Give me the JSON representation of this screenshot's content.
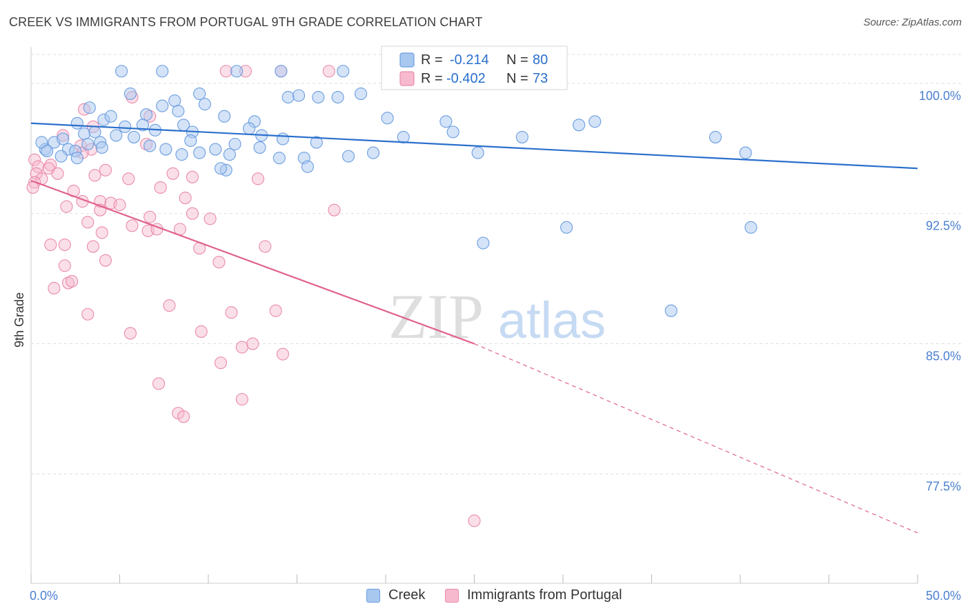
{
  "header": {
    "title": "CREEK VS IMMIGRANTS FROM PORTUGAL 9TH GRADE CORRELATION CHART",
    "source": "Source: ZipAtlas.com"
  },
  "watermark": {
    "zip": "ZIP",
    "atlas": "atlas"
  },
  "colors": {
    "creek_fill": "#a9c8f0",
    "creek_stroke": "#6a9de0",
    "creek_line": "#2a6fcc",
    "portugal_fill": "#f7b9cd",
    "portugal_stroke": "#e98aab",
    "portugal_line": "#e0618f",
    "axis_label": "#4a7fd0",
    "grid": "#dddddd"
  },
  "legend": {
    "rows": [
      {
        "r_label": "R =",
        "r_value": "-0.214",
        "n_label": "N =",
        "n_value": "80"
      },
      {
        "r_label": "R =",
        "r_value": "-0.402",
        "n_label": "N =",
        "n_value": "73"
      }
    ]
  },
  "bottom_legend": {
    "items": [
      "Creek",
      "Immigrants from Portugal"
    ]
  },
  "chart_data": {
    "type": "scatter",
    "title": "CREEK VS IMMIGRANTS FROM PORTUGAL 9TH GRADE CORRELATION CHART",
    "xlabel": "",
    "ylabel": "9th Grade",
    "xlim": [
      0,
      50
    ],
    "ylim": [
      71.2,
      102.1
    ],
    "x_tick_labels": [
      "0.0%",
      "50.0%"
    ],
    "y_ticks": [
      100,
      92.5,
      85,
      77.5
    ],
    "y_tick_labels": [
      "100.0%",
      "92.5%",
      "85.0%",
      "77.5%"
    ],
    "grid": "horizontal dashed",
    "legend_position": "top-center",
    "series": [
      {
        "name": "Creek",
        "r": -0.214,
        "n": 80,
        "trend": {
          "x0": 0,
          "y0": 97.7,
          "x1": 50,
          "y1": 95.1
        },
        "points": [
          [
            5.1,
            100.7
          ],
          [
            7.4,
            100.7
          ],
          [
            11.6,
            100.7
          ],
          [
            14.1,
            100.7
          ],
          [
            17.6,
            100.7
          ],
          [
            22.2,
            100.7
          ],
          [
            24.2,
            100.7
          ],
          [
            5.6,
            99.4
          ],
          [
            8.1,
            99.0
          ],
          [
            9.5,
            99.4
          ],
          [
            14.5,
            99.2
          ],
          [
            15.1,
            99.3
          ],
          [
            16.2,
            99.2
          ],
          [
            17.3,
            99.2
          ],
          [
            18.6,
            99.4
          ],
          [
            3.3,
            98.6
          ],
          [
            6.5,
            98.2
          ],
          [
            7.4,
            98.7
          ],
          [
            8.3,
            98.4
          ],
          [
            9.8,
            98.8
          ],
          [
            10.9,
            98.1
          ],
          [
            12.6,
            97.8
          ],
          [
            2.6,
            97.7
          ],
          [
            4.1,
            97.9
          ],
          [
            4.5,
            98.1
          ],
          [
            5.3,
            97.5
          ],
          [
            6.3,
            97.6
          ],
          [
            7.0,
            97.3
          ],
          [
            8.6,
            97.6
          ],
          [
            9.1,
            97.2
          ],
          [
            12.3,
            97.4
          ],
          [
            13.0,
            97.0
          ],
          [
            20.1,
            98.0
          ],
          [
            23.4,
            97.8
          ],
          [
            23.8,
            97.2
          ],
          [
            30.9,
            97.6
          ],
          [
            31.8,
            97.8
          ],
          [
            0.8,
            96.2
          ],
          [
            1.3,
            96.6
          ],
          [
            2.1,
            96.2
          ],
          [
            3.0,
            97.1
          ],
          [
            3.6,
            97.2
          ],
          [
            4.8,
            97.0
          ],
          [
            5.8,
            96.9
          ],
          [
            6.7,
            96.4
          ],
          [
            9.0,
            96.7
          ],
          [
            10.4,
            96.2
          ],
          [
            11.5,
            96.5
          ],
          [
            12.9,
            96.3
          ],
          [
            14.2,
            96.8
          ],
          [
            16.1,
            96.6
          ],
          [
            21.0,
            96.9
          ],
          [
            27.7,
            96.9
          ],
          [
            38.6,
            96.9
          ],
          [
            1.8,
            96.8
          ],
          [
            0.6,
            96.6
          ],
          [
            3.2,
            96.5
          ],
          [
            3.9,
            96.6
          ],
          [
            4.0,
            96.3
          ],
          [
            2.5,
            96.1
          ],
          [
            0.9,
            96.1
          ],
          [
            1.7,
            95.8
          ],
          [
            2.6,
            95.7
          ],
          [
            7.6,
            96.2
          ],
          [
            8.5,
            95.9
          ],
          [
            9.5,
            96.0
          ],
          [
            11.2,
            95.9
          ],
          [
            14.0,
            95.7
          ],
          [
            15.4,
            95.7
          ],
          [
            17.9,
            95.8
          ],
          [
            19.3,
            96.0
          ],
          [
            25.2,
            96.0
          ],
          [
            40.3,
            96.0
          ],
          [
            11.0,
            95.0
          ],
          [
            15.6,
            95.2
          ],
          [
            10.7,
            95.1
          ],
          [
            30.2,
            91.7
          ],
          [
            40.6,
            91.7
          ],
          [
            25.5,
            90.8
          ],
          [
            36.1,
            86.9
          ]
        ]
      },
      {
        "name": "Immigrants from Portugal",
        "r": -0.402,
        "n": 73,
        "trend_solid": {
          "x0": 0,
          "y0": 94.4,
          "x1": 25.0,
          "y1": 85.0
        },
        "trend_dashed": {
          "x0": 25.0,
          "y0": 85.0,
          "x1": 50,
          "y1": 74.1
        },
        "points": [
          [
            11.0,
            100.7
          ],
          [
            12.1,
            100.7
          ],
          [
            14.1,
            100.7
          ],
          [
            16.8,
            100.7
          ],
          [
            5.7,
            99.2
          ],
          [
            3.0,
            98.5
          ],
          [
            6.7,
            98.1
          ],
          [
            3.5,
            97.5
          ],
          [
            1.8,
            97.0
          ],
          [
            2.8,
            96.4
          ],
          [
            6.5,
            96.5
          ],
          [
            3.4,
            96.2
          ],
          [
            2.9,
            96.0
          ],
          [
            0.2,
            95.6
          ],
          [
            1.1,
            95.3
          ],
          [
            0.4,
            95.2
          ],
          [
            1.0,
            95.1
          ],
          [
            0.3,
            94.8
          ],
          [
            0.6,
            94.5
          ],
          [
            0.2,
            94.3
          ],
          [
            1.5,
            94.8
          ],
          [
            3.6,
            94.7
          ],
          [
            4.2,
            95.0
          ],
          [
            5.5,
            94.5
          ],
          [
            8.0,
            94.8
          ],
          [
            9.1,
            94.6
          ],
          [
            12.8,
            94.5
          ],
          [
            7.3,
            94.0
          ],
          [
            2.4,
            93.8
          ],
          [
            2.9,
            93.2
          ],
          [
            3.9,
            93.2
          ],
          [
            4.5,
            93.1
          ],
          [
            5.0,
            93.0
          ],
          [
            8.7,
            93.4
          ],
          [
            2.0,
            92.9
          ],
          [
            3.9,
            92.7
          ],
          [
            6.7,
            92.3
          ],
          [
            9.1,
            92.5
          ],
          [
            17.1,
            92.7
          ],
          [
            3.2,
            92.0
          ],
          [
            4.0,
            91.4
          ],
          [
            5.7,
            91.8
          ],
          [
            6.6,
            91.5
          ],
          [
            7.1,
            91.6
          ],
          [
            8.4,
            91.6
          ],
          [
            10.1,
            92.2
          ],
          [
            1.1,
            90.7
          ],
          [
            1.9,
            90.7
          ],
          [
            3.5,
            90.6
          ],
          [
            4.2,
            89.8
          ],
          [
            9.5,
            90.5
          ],
          [
            13.2,
            90.6
          ],
          [
            1.9,
            89.5
          ],
          [
            10.6,
            89.7
          ],
          [
            2.1,
            88.5
          ],
          [
            2.3,
            88.6
          ],
          [
            1.3,
            88.2
          ],
          [
            7.8,
            87.2
          ],
          [
            11.3,
            86.8
          ],
          [
            13.8,
            86.9
          ],
          [
            3.2,
            86.7
          ],
          [
            5.6,
            85.6
          ],
          [
            9.6,
            85.7
          ],
          [
            11.9,
            84.8
          ],
          [
            12.5,
            85.0
          ],
          [
            14.2,
            84.4
          ],
          [
            10.7,
            83.9
          ],
          [
            7.2,
            82.7
          ],
          [
            11.9,
            81.8
          ],
          [
            8.3,
            81.0
          ],
          [
            8.6,
            80.8
          ],
          [
            25.0,
            74.8
          ],
          [
            0.1,
            94.0
          ]
        ]
      }
    ]
  }
}
